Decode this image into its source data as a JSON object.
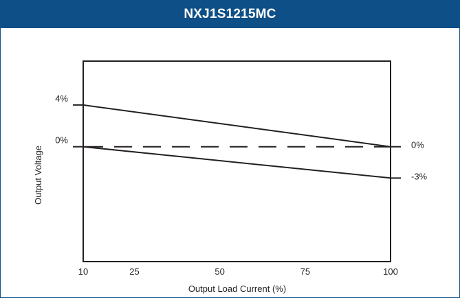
{
  "chart_data": {
    "type": "line",
    "title": "NXJ1S1215MC",
    "xlabel": "Output Load Current (%)",
    "ylabel": "Output Voltage",
    "x_ticks": [
      "10",
      "25",
      "50",
      "75",
      "100"
    ],
    "xlim": [
      10,
      100
    ],
    "ylim": [
      -11,
      8.2
    ],
    "y_ticks_left": [
      {
        "value": 4,
        "label": "4%"
      },
      {
        "value": 0,
        "label": "0%"
      }
    ],
    "end_labels_right": [
      {
        "value": 0,
        "label": "0%"
      },
      {
        "value": -3,
        "label": "-3%"
      }
    ],
    "series": [
      {
        "style": "solid",
        "x": [
          10,
          100
        ],
        "y": [
          4,
          0
        ]
      },
      {
        "style": "dashed",
        "x": [
          10,
          100
        ],
        "y": [
          0,
          0
        ]
      },
      {
        "style": "solid",
        "x": [
          10,
          100
        ],
        "y": [
          0,
          -3
        ]
      }
    ],
    "grid": false,
    "colors": {
      "header": "#0d4f86",
      "line": "#231f20"
    }
  }
}
